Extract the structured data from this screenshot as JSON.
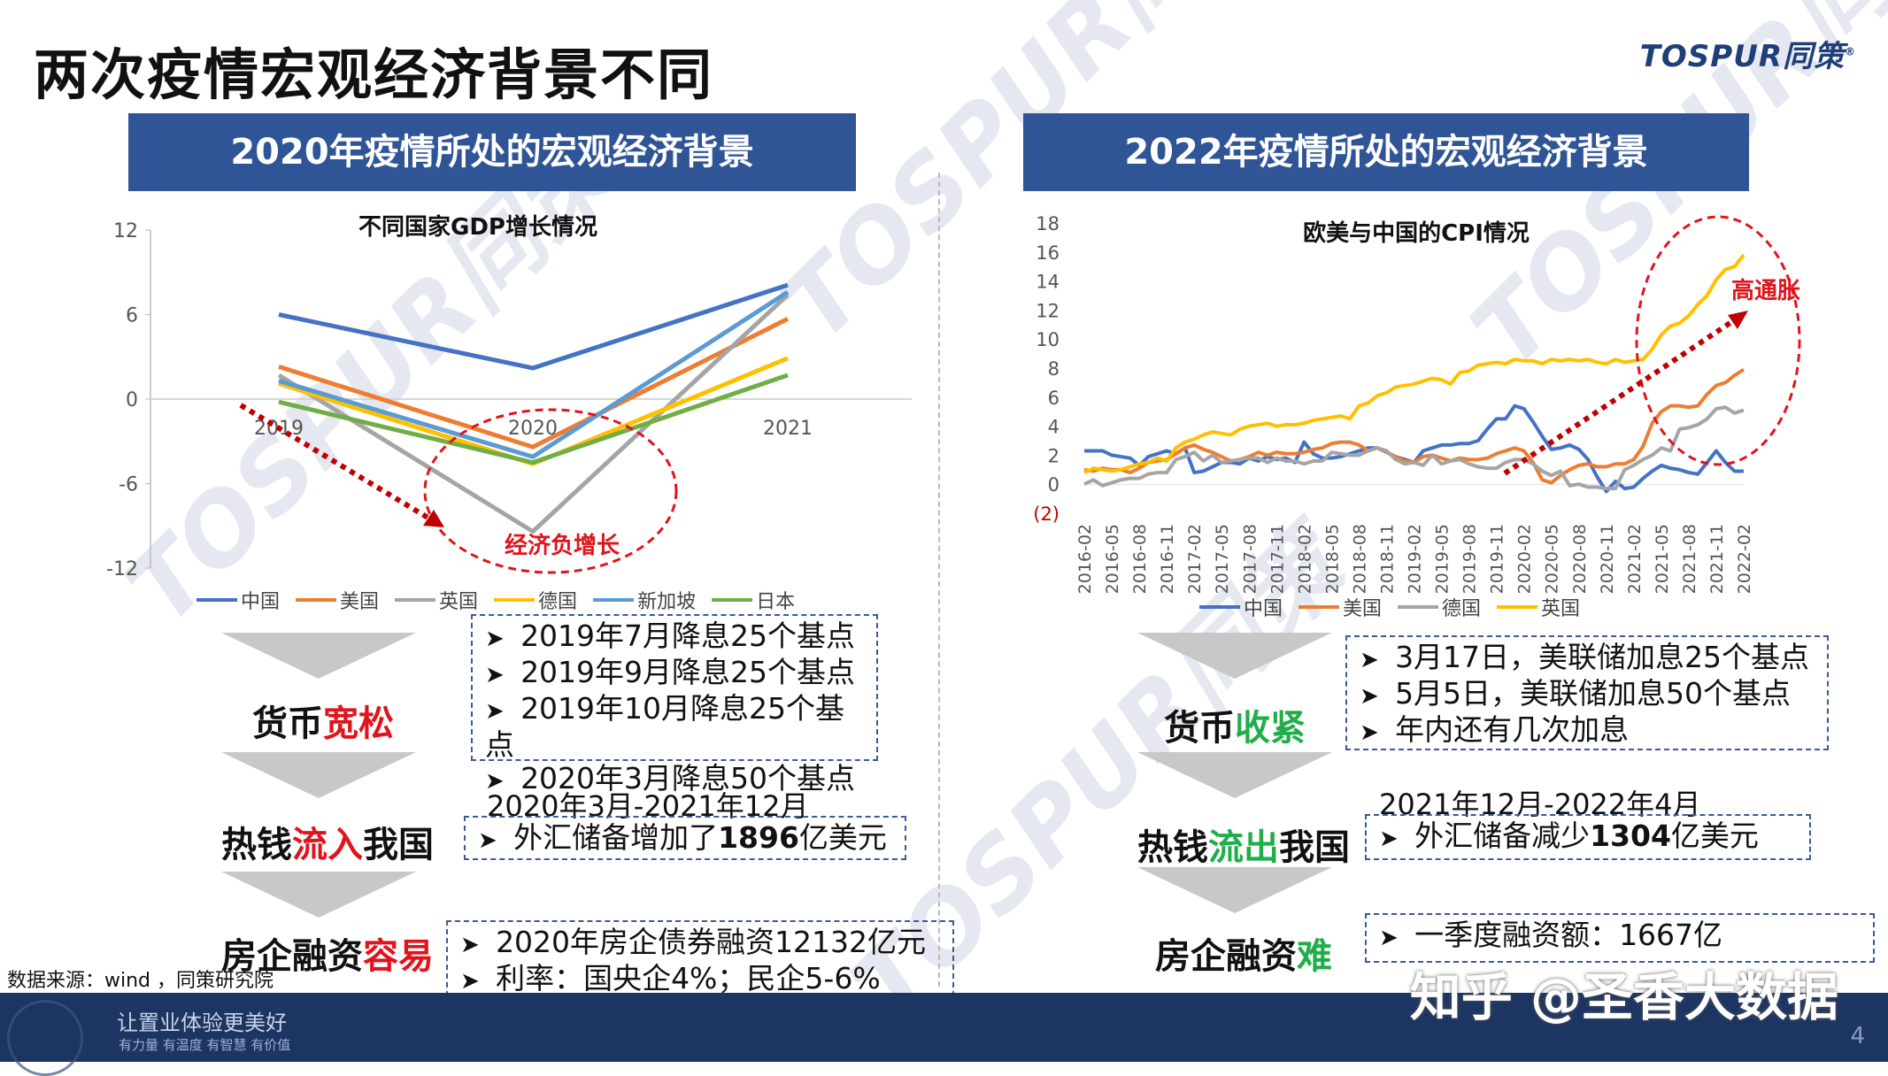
{
  "page": {
    "title": "两次疫情宏观经济背景不同",
    "logo_text": "TOSPUR同策",
    "watermark": "TOSPUR同策",
    "source": "数据来源：wind ，同策研究院",
    "footer_slogan": "让置业体验更美好",
    "footer_sub": "有力量 有温度 有智慧 有价值",
    "page_number": "4",
    "zhihu_watermark": "知乎 @圣香大数据"
  },
  "left": {
    "banner": "2020年疫情所处的宏观经济背景",
    "annotation": "经济负增长",
    "stages": [
      {
        "prefix": "货币",
        "highlight": "宽松",
        "suffix": ""
      },
      {
        "prefix": "热钱",
        "highlight": "流入",
        "suffix": "我国"
      },
      {
        "prefix": "房企融资",
        "highlight": "容易",
        "suffix": ""
      }
    ],
    "box1": [
      "2019年7月降息25个基点",
      "2019年9月降息25个基点",
      "2019年10月降息25个基点",
      "2020年3月降息50个基点"
    ],
    "period2": "2020年3月-2021年12月",
    "box2_prefix": "外汇储备增加了",
    "box2_bold": "1896",
    "box2_suffix": "亿美元",
    "box3": [
      "2020年房企债券融资12132亿元",
      "利率：国央企4%；民企5-6%"
    ]
  },
  "right": {
    "banner": "2022年疫情所处的宏观经济背景",
    "annotation": "高通胀",
    "stages": [
      {
        "prefix": "货币",
        "highlight": "收紧",
        "suffix": ""
      },
      {
        "prefix": "热钱",
        "highlight": "流出",
        "suffix": "我国"
      },
      {
        "prefix": "房企融资",
        "highlight": "难",
        "suffix": ""
      }
    ],
    "box1": [
      "3月17日，美联储加息25个基点",
      "5月5日，美联储加息50个基点",
      "年内还有几次加息"
    ],
    "period2": "2021年12月-2022年4月",
    "box2_prefix": "外汇储备减少",
    "box2_bold": "1304",
    "box2_suffix": "亿美元",
    "box3": [
      "一季度融资额：1667亿"
    ]
  },
  "chart_data": [
    {
      "type": "line",
      "title": "不同国家GDP增长情况",
      "categories": [
        "2019",
        "2020",
        "2021"
      ],
      "ylim": [
        -12,
        12
      ],
      "yticks": [
        12,
        6,
        0,
        -6,
        -12
      ],
      "legend_position": "bottom",
      "series": [
        {
          "name": "中国",
          "color": "#4472c4",
          "values": [
            6.0,
            2.2,
            8.1
          ]
        },
        {
          "name": "美国",
          "color": "#ed7d31",
          "values": [
            2.3,
            -3.4,
            5.7
          ]
        },
        {
          "name": "英国",
          "color": "#a5a5a5",
          "values": [
            1.7,
            -9.4,
            7.4
          ]
        },
        {
          "name": "德国",
          "color": "#ffc000",
          "values": [
            1.1,
            -4.6,
            2.9
          ]
        },
        {
          "name": "新加坡",
          "color": "#5b9bd5",
          "values": [
            1.3,
            -4.1,
            7.6
          ]
        },
        {
          "name": "日本",
          "color": "#70ad47",
          "values": [
            -0.2,
            -4.5,
            1.7
          ]
        }
      ]
    },
    {
      "type": "line",
      "title": "欧美与中国的CPI情况",
      "ylim": [
        -2,
        18
      ],
      "yticks": [
        "18",
        "16",
        "14",
        "12",
        "10",
        "8",
        "6",
        "4",
        "2",
        "0",
        "(2)"
      ],
      "legend_position": "bottom",
      "x": [
        "2016-02",
        "2016-03",
        "2016-04",
        "2016-05",
        "2016-06",
        "2016-07",
        "2016-08",
        "2016-09",
        "2016-10",
        "2016-11",
        "2016-12",
        "2017-01",
        "2017-02",
        "2017-03",
        "2017-04",
        "2017-05",
        "2017-06",
        "2017-07",
        "2017-08",
        "2017-09",
        "2017-10",
        "2017-11",
        "2017-12",
        "2018-01",
        "2018-02",
        "2018-03",
        "2018-04",
        "2018-05",
        "2018-06",
        "2018-07",
        "2018-08",
        "2018-09",
        "2018-10",
        "2018-11",
        "2018-12",
        "2019-01",
        "2019-02",
        "2019-03",
        "2019-04",
        "2019-05",
        "2019-06",
        "2019-07",
        "2019-08",
        "2019-09",
        "2019-10",
        "2019-11",
        "2019-12",
        "2020-01",
        "2020-02",
        "2020-03",
        "2020-04",
        "2020-05",
        "2020-06",
        "2020-07",
        "2020-08",
        "2020-09",
        "2020-10",
        "2020-11",
        "2020-12",
        "2021-01",
        "2021-02",
        "2021-03",
        "2021-04",
        "2021-05",
        "2021-06",
        "2021-07",
        "2021-08",
        "2021-09",
        "2021-10",
        "2021-11",
        "2021-12",
        "2022-01",
        "2022-02"
      ],
      "x_tick_labels": [
        "2016-02",
        "2016-05",
        "2016-08",
        "2016-11",
        "2017-02",
        "2017-05",
        "2017-08",
        "2017-11",
        "2018-02",
        "2018-05",
        "2018-08",
        "2018-11",
        "2019-02",
        "2019-05",
        "2019-08",
        "2019-11",
        "2020-02",
        "2020-05",
        "2020-08",
        "2020-11",
        "2021-02",
        "2021-05",
        "2021-08",
        "2021-11",
        "2022-02"
      ],
      "series": [
        {
          "name": "中国",
          "color": "#4472c4",
          "values": [
            2.3,
            2.3,
            2.3,
            2.0,
            1.9,
            1.8,
            1.3,
            1.9,
            2.1,
            2.3,
            2.1,
            2.5,
            0.8,
            0.9,
            1.2,
            1.5,
            1.5,
            1.4,
            1.8,
            1.6,
            1.9,
            1.7,
            1.8,
            1.5,
            2.9,
            2.1,
            1.8,
            1.8,
            1.9,
            2.1,
            2.3,
            2.5,
            2.5,
            2.2,
            1.9,
            1.7,
            1.5,
            2.3,
            2.5,
            2.7,
            2.7,
            2.8,
            2.8,
            3.0,
            3.8,
            4.5,
            4.5,
            5.4,
            5.2,
            4.3,
            3.3,
            2.4,
            2.5,
            2.7,
            2.4,
            1.7,
            0.5,
            -0.5,
            0.2,
            -0.3,
            -0.2,
            0.4,
            0.9,
            1.3,
            1.1,
            1.0,
            0.8,
            0.7,
            1.5,
            2.3,
            1.5,
            0.9,
            0.9
          ]
        },
        {
          "name": "美国",
          "color": "#ed7d31",
          "values": [
            1.0,
            0.9,
            1.1,
            1.0,
            1.0,
            0.8,
            1.1,
            1.5,
            1.6,
            1.7,
            2.1,
            2.5,
            2.7,
            2.4,
            2.2,
            1.9,
            1.6,
            1.7,
            1.9,
            2.2,
            2.0,
            2.2,
            2.1,
            2.1,
            2.2,
            2.4,
            2.5,
            2.8,
            2.9,
            2.9,
            2.7,
            2.3,
            2.5,
            2.2,
            1.9,
            1.6,
            1.5,
            1.9,
            2.0,
            1.8,
            1.6,
            1.8,
            1.7,
            1.7,
            1.8,
            2.1,
            2.3,
            2.5,
            2.3,
            1.5,
            0.3,
            0.1,
            0.6,
            1.0,
            1.3,
            1.4,
            1.2,
            1.2,
            1.4,
            1.4,
            1.7,
            2.6,
            4.2,
            5.0,
            5.4,
            5.4,
            5.3,
            5.4,
            6.2,
            6.8,
            7.0,
            7.5,
            7.9
          ]
        },
        {
          "name": "德国",
          "color": "#a5a5a5",
          "values": [
            0.0,
            0.3,
            -0.1,
            0.1,
            0.3,
            0.4,
            0.4,
            0.7,
            0.8,
            0.8,
            1.7,
            1.9,
            2.2,
            1.6,
            2.0,
            1.5,
            1.6,
            1.7,
            1.8,
            1.8,
            1.5,
            1.8,
            1.6,
            1.6,
            1.4,
            1.6,
            1.6,
            2.2,
            2.1,
            2.0,
            2.0,
            2.3,
            2.5,
            2.3,
            1.7,
            1.4,
            1.5,
            1.3,
            2.0,
            1.4,
            1.6,
            1.7,
            1.4,
            1.2,
            1.1,
            1.1,
            1.5,
            1.7,
            1.7,
            1.4,
            0.9,
            0.6,
            0.9,
            -0.1,
            0.0,
            -0.2,
            -0.2,
            -0.3,
            -0.3,
            1.0,
            1.3,
            1.7,
            2.0,
            2.5,
            2.3,
            3.8,
            3.9,
            4.1,
            4.5,
            5.2,
            5.3,
            4.9,
            5.1
          ]
        },
        {
          "name": "英国",
          "color": "#ffc000",
          "values": [
            0.8,
            1.1,
            1.0,
            0.9,
            1.0,
            1.2,
            1.4,
            1.5,
            1.8,
            1.6,
            2.5,
            2.9,
            3.1,
            3.4,
            3.6,
            3.5,
            3.4,
            3.8,
            4.0,
            4.1,
            4.2,
            4.0,
            4.1,
            4.1,
            4.2,
            4.4,
            4.5,
            4.6,
            4.7,
            4.5,
            5.4,
            5.6,
            6.1,
            6.3,
            6.7,
            6.8,
            6.9,
            7.1,
            7.3,
            7.2,
            6.9,
            7.7,
            7.8,
            8.2,
            8.3,
            8.4,
            8.3,
            8.6,
            8.5,
            8.5,
            8.3,
            8.6,
            8.5,
            8.6,
            8.5,
            8.6,
            8.4,
            8.3,
            8.6,
            8.4,
            8.5,
            8.6,
            9.3,
            10.3,
            10.9,
            11.1,
            11.6,
            12.4,
            13.0,
            14.1,
            14.8,
            15.0,
            15.8
          ]
        }
      ]
    }
  ]
}
